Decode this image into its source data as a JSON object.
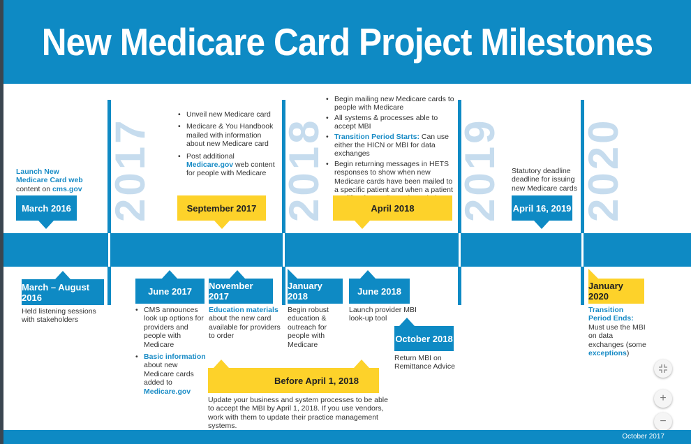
{
  "title": "New Medicare Card Project Milestones",
  "footer": "October 2017",
  "years": [
    "2017",
    "2018",
    "2019",
    "2020"
  ],
  "colors": {
    "blue": "#0e8ac4",
    "yellow": "#fdd22a",
    "year_text": "#c6dcee"
  },
  "top": {
    "mar2016": {
      "date": "March 2016",
      "hl1": "Launch New",
      "hl2": "Medicare Card web",
      "text": "content on ",
      "link": "cms.gov"
    },
    "sep2017": {
      "date": "September 2017",
      "b1": "Unveil new Medicare card",
      "b2": "Medicare & You Handbook mailed with information about new Medicare card",
      "b3a": "Post additional ",
      "b3link": "Medicare.gov",
      "b3b": " web content for people with Medicare"
    },
    "apr2018": {
      "date": "April 2018",
      "b1": "Begin mailing new Medicare cards to people with Medicare",
      "b2": "All systems & processes able to accept MBI",
      "b3hl": "Transition Period Starts:",
      "b3": " Can use either the HICN or MBI for data exchanges",
      "b4": "Begin returning messages in HETS responses to show when new Medicare cards have been mailed to a specific patient and when a patient qualifies for Medicare through the RRB"
    },
    "apr2019": {
      "date": "April 16, 2019",
      "text": "Statutory deadline deadline for issuing new Medicare cards"
    }
  },
  "bottom": {
    "marAug2016": {
      "date": "March – August 2016",
      "text": "Held listening sessions with stakeholders"
    },
    "jun2017": {
      "date": "June 2017",
      "b1": "CMS announces look up options for providers and people with Medicare",
      "b2hl": "Basic information",
      "b2": " about new Medicare cards added to ",
      "b2link": "Medicare.gov"
    },
    "nov2017": {
      "date": "November 2017",
      "hl": "Education materials",
      "text": " about the new card available for providers to order"
    },
    "jan2018": {
      "date": "January 2018",
      "text": "Begin robust education & outreach for people with Medicare"
    },
    "jun2018": {
      "date": "June 2018",
      "text": "Launch provider MBI look-up tool"
    },
    "oct2018": {
      "date": "October 2018",
      "text": "Return MBI on Remittance Advice"
    },
    "before": {
      "date": "Before April 1, 2018",
      "text": "Update your business and system processes to be able to accept the MBI by April 1, 2018.  If you use vendors, work with them to update their practice management systems."
    },
    "jan2020": {
      "date": "January 2020",
      "hl": "Transition Period Ends:",
      "text": " Must use the MBI on data exchanges (some ",
      "link": "exceptions",
      "end": ")"
    }
  },
  "controls": {
    "exit_fullscreen": "exit-fullscreen-icon",
    "zoom_in": "+",
    "zoom_out": "−"
  }
}
